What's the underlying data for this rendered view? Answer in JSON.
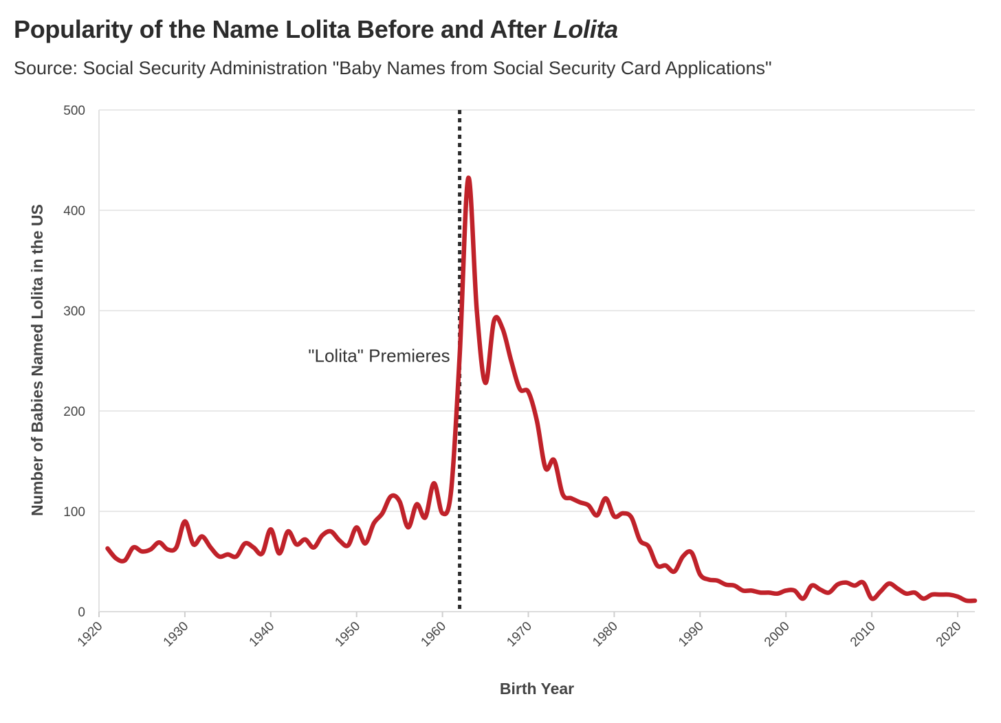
{
  "title_main": "Popularity of the Name Lolita Before and After ",
  "title_italic": "Lolita",
  "subtitle": "Source: Social Security Administration \"Baby Names from Social Security Card Applications\"",
  "chart_data": {
    "type": "line",
    "title": "Popularity of the Name Lolita Before and After Lolita",
    "subtitle": "Source: Social Security Administration \"Baby Names from Social Security Card Applications\"",
    "xlabel": "Birth Year",
    "ylabel": "Number of Babies Named Lolita in the US",
    "xlim": [
      1920,
      2022
    ],
    "ylim": [
      0,
      500
    ],
    "xticks": [
      1920,
      1930,
      1940,
      1950,
      1960,
      1970,
      1980,
      1990,
      2000,
      2010,
      2020
    ],
    "yticks": [
      0,
      100,
      200,
      300,
      400,
      500
    ],
    "grid": "horizontal",
    "line_color": "#c0222a",
    "annotation": {
      "label": "\"Lolita\" Premieres",
      "x": 1962
    },
    "series": [
      {
        "x": [
          1921,
          1922,
          1923,
          1924,
          1925,
          1926,
          1927,
          1928,
          1929,
          1930,
          1931,
          1932,
          1933,
          1934,
          1935,
          1936,
          1937,
          1938,
          1939,
          1940,
          1941,
          1942,
          1943,
          1944,
          1945,
          1946,
          1947,
          1948,
          1949,
          1950,
          1951,
          1952,
          1953,
          1954,
          1955,
          1956,
          1957,
          1958,
          1959,
          1960,
          1961,
          1962,
          1963,
          1964,
          1965,
          1966,
          1967,
          1968,
          1969,
          1970,
          1971,
          1972,
          1973,
          1974,
          1975,
          1976,
          1977,
          1978,
          1979,
          1980,
          1981,
          1982,
          1983,
          1984,
          1985,
          1986,
          1987,
          1988,
          1989,
          1990,
          1991,
          1992,
          1993,
          1994,
          1995,
          1996,
          1997,
          1998,
          1999,
          2000,
          2001,
          2002,
          2003,
          2004,
          2005,
          2006,
          2007,
          2008,
          2009,
          2010,
          2011,
          2012,
          2013,
          2014,
          2015,
          2016,
          2017,
          2018,
          2019,
          2020,
          2021,
          2022
        ],
        "values": [
          63,
          53,
          51,
          64,
          60,
          62,
          69,
          62,
          64,
          90,
          67,
          75,
          64,
          55,
          57,
          55,
          68,
          64,
          58,
          82,
          58,
          80,
          67,
          72,
          64,
          76,
          80,
          71,
          66,
          84,
          68,
          88,
          98,
          115,
          110,
          84,
          107,
          94,
          128,
          98,
          120,
          255,
          432,
          300,
          228,
          290,
          282,
          250,
          222,
          219,
          190,
          143,
          151,
          117,
          113,
          109,
          106,
          96,
          113,
          95,
          98,
          94,
          71,
          65,
          46,
          46,
          40,
          55,
          59,
          37,
          32,
          31,
          27,
          26,
          21,
          21,
          19,
          19,
          18,
          21,
          21,
          13,
          26,
          22,
          19,
          27,
          29,
          26,
          29,
          13,
          20,
          28,
          23,
          18,
          19,
          13,
          17,
          17,
          17,
          15,
          11,
          11
        ]
      }
    ]
  }
}
